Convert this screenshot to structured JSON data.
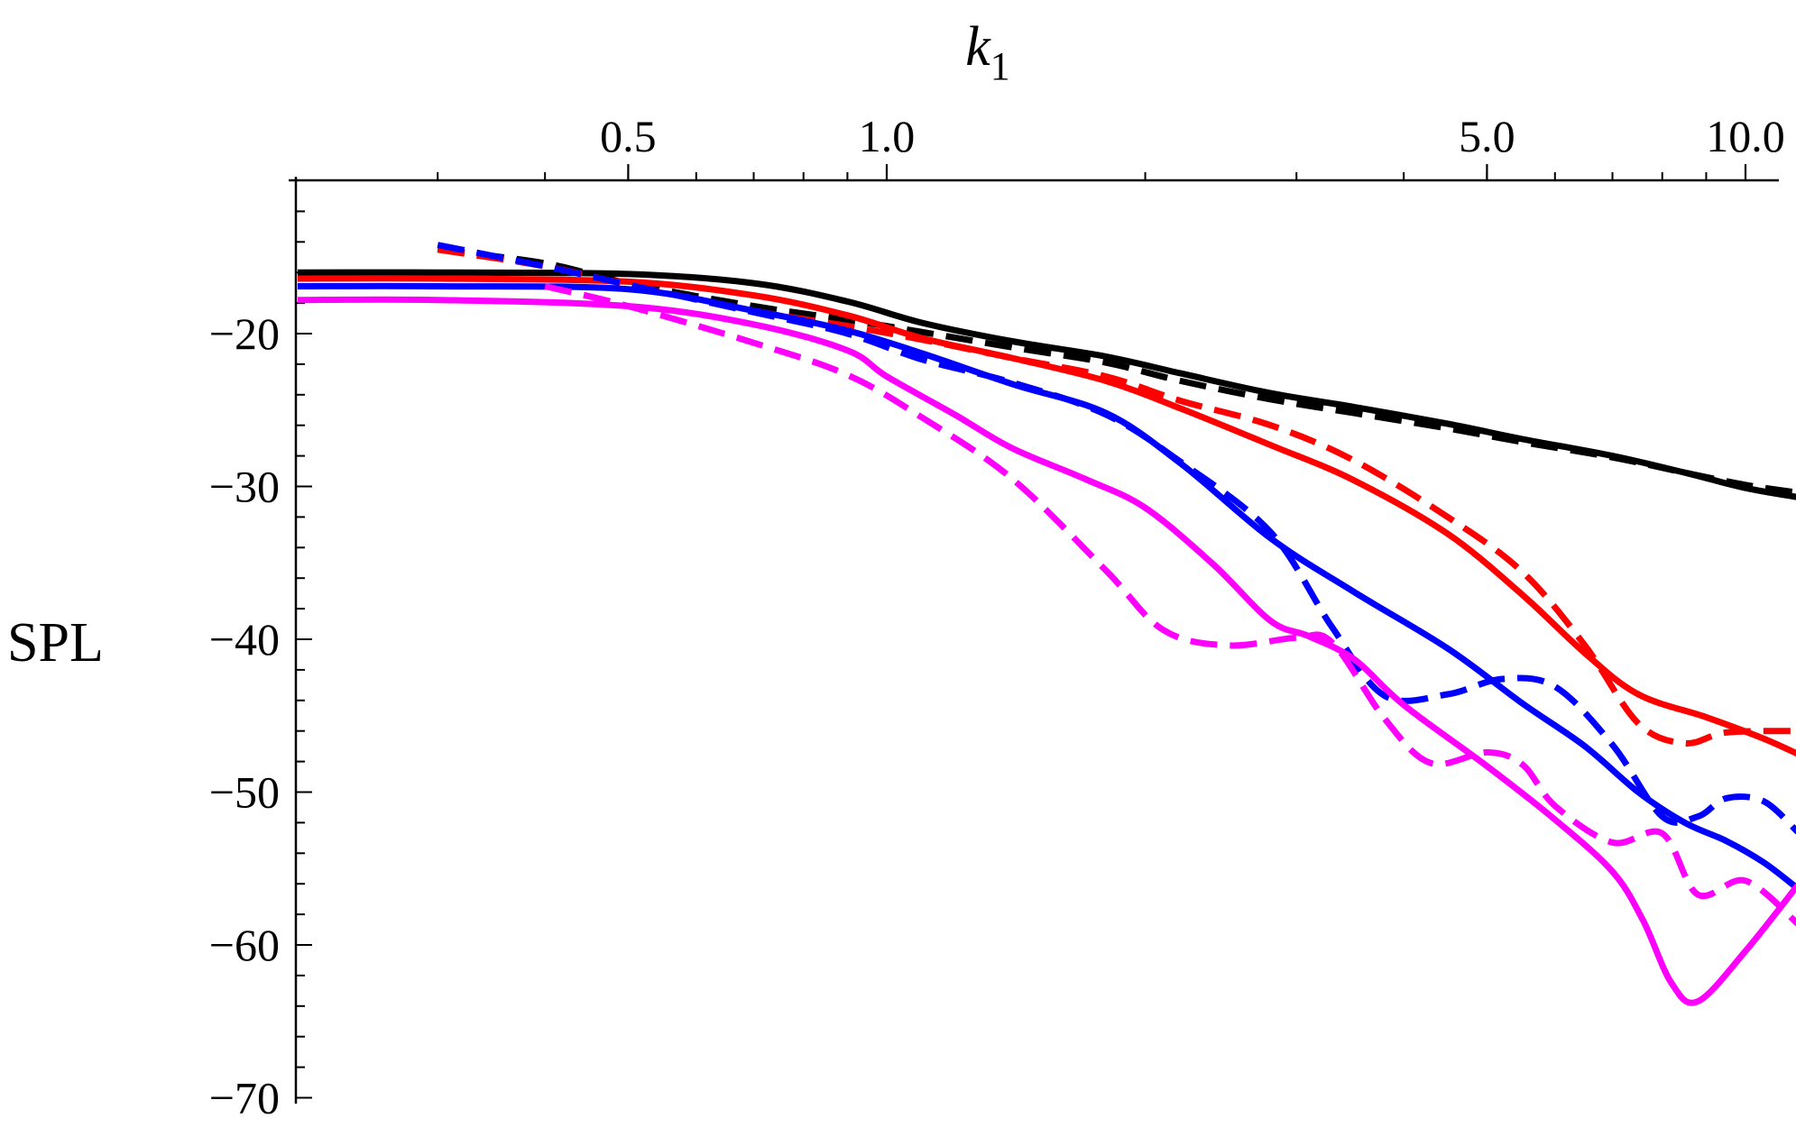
{
  "chart_data": {
    "type": "line",
    "title": "",
    "xlabel": "k",
    "xlabel_subscript": "1",
    "ylabel": "SPL",
    "x_scale": "log",
    "x_axis_position": "top",
    "xlim": [
      0.2,
      11.5
    ],
    "ylim": [
      -70,
      -12
    ],
    "xticks": [
      {
        "value": 0.5,
        "label": "0.5"
      },
      {
        "value": 1.0,
        "label": "1.0"
      },
      {
        "value": 5.0,
        "label": "5.0"
      },
      {
        "value": 10.0,
        "label": "10.0"
      }
    ],
    "yticks": [
      {
        "value": -20,
        "label": "−20"
      },
      {
        "value": -30,
        "label": "−30"
      },
      {
        "value": -40,
        "label": "−40"
      },
      {
        "value": -50,
        "label": "−50"
      },
      {
        "value": -60,
        "label": "−60"
      },
      {
        "value": -70,
        "label": "−70"
      }
    ],
    "grid": false,
    "legend": "none",
    "series": [
      {
        "color": "#000000",
        "style": "solid",
        "x": [
          0.2,
          0.3,
          0.5,
          0.7,
          0.9,
          1.1,
          1.4,
          1.8,
          2.2,
          2.8,
          3.5,
          4.5,
          5.5,
          7.0,
          8.5,
          10.0,
          11.5
        ],
        "y": [
          -16.0,
          -16.0,
          -16.1,
          -16.7,
          -17.9,
          -19.3,
          -20.5,
          -21.5,
          -22.6,
          -23.9,
          -24.8,
          -25.9,
          -26.9,
          -28.0,
          -29.1,
          -30.1,
          -30.7
        ]
      },
      {
        "color": "#000000",
        "style": "dashed",
        "x": [
          0.3,
          0.4,
          0.5,
          0.7,
          0.9,
          1.1,
          1.4,
          1.8,
          2.2,
          2.8,
          3.5,
          4.5,
          5.5,
          7.0,
          8.5,
          10.0,
          11.5
        ],
        "y": [
          -14.5,
          -15.4,
          -16.7,
          -18.2,
          -19.1,
          -19.9,
          -20.9,
          -21.9,
          -23.1,
          -24.3,
          -25.2,
          -26.2,
          -27.1,
          -28.1,
          -29.1,
          -29.9,
          -30.4
        ]
      },
      {
        "color": "#ff0000",
        "style": "solid",
        "x": [
          0.2,
          0.3,
          0.5,
          0.7,
          0.9,
          1.1,
          1.4,
          1.8,
          2.2,
          2.8,
          3.5,
          4.5,
          5.5,
          6.5,
          7.5,
          9.0,
          10.5,
          11.5
        ],
        "y": [
          -16.4,
          -16.4,
          -16.6,
          -17.5,
          -18.8,
          -20.3,
          -21.6,
          -23.1,
          -24.9,
          -27.3,
          -29.6,
          -33.1,
          -37.1,
          -40.9,
          -43.6,
          -45.1,
          -46.5,
          -47.5
        ]
      },
      {
        "color": "#ff0000",
        "style": "dashed",
        "x": [
          0.3,
          0.4,
          0.5,
          0.7,
          0.9,
          1.1,
          1.4,
          1.8,
          2.2,
          2.8,
          3.5,
          4.5,
          5.5,
          6.5,
          7.5,
          8.5,
          9.5,
          11.5
        ],
        "y": [
          -14.5,
          -15.6,
          -16.8,
          -18.5,
          -19.5,
          -20.4,
          -21.6,
          -22.8,
          -24.4,
          -26.0,
          -28.3,
          -32.0,
          -35.6,
          -40.4,
          -45.5,
          -46.8,
          -46.1,
          -46.0
        ]
      },
      {
        "color": "#0000ff",
        "style": "solid",
        "x": [
          0.2,
          0.3,
          0.5,
          0.7,
          0.9,
          1.1,
          1.4,
          1.8,
          2.2,
          2.8,
          3.5,
          4.5,
          5.5,
          6.5,
          7.5,
          8.5,
          9.5,
          10.5,
          11.5
        ],
        "y": [
          -16.9,
          -16.9,
          -17.1,
          -18.5,
          -19.8,
          -21.3,
          -23.3,
          -25.2,
          -28.5,
          -33.4,
          -36.9,
          -40.6,
          -44.2,
          -47.0,
          -50.0,
          -52.0,
          -53.2,
          -54.6,
          -56.3
        ]
      },
      {
        "color": "#0000ff",
        "style": "dashed",
        "x": [
          0.3,
          0.4,
          0.5,
          0.7,
          0.9,
          1.1,
          1.4,
          1.8,
          2.2,
          2.8,
          3.3,
          3.8,
          4.5,
          5.2,
          6.0,
          7.0,
          8.0,
          8.8,
          9.5,
          10.5,
          11.5
        ],
        "y": [
          -14.2,
          -15.6,
          -16.8,
          -18.6,
          -20.0,
          -21.7,
          -23.2,
          -25.3,
          -28.4,
          -33.0,
          -39.2,
          -43.7,
          -43.6,
          -42.6,
          -43.1,
          -46.9,
          -51.6,
          -51.6,
          -50.4,
          -50.6,
          -52.6
        ]
      },
      {
        "color": "#ff00ff",
        "style": "solid",
        "x": [
          0.2,
          0.3,
          0.5,
          0.7,
          0.9,
          1.0,
          1.2,
          1.4,
          1.7,
          2.0,
          2.4,
          2.8,
          3.1,
          3.5,
          4.0,
          5.0,
          6.0,
          7.0,
          7.6,
          8.2,
          8.8,
          10.0,
          11.5
        ],
        "y": [
          -17.8,
          -17.8,
          -18.2,
          -19.4,
          -21.1,
          -22.8,
          -25.3,
          -27.5,
          -29.5,
          -31.4,
          -35.1,
          -38.8,
          -39.8,
          -41.3,
          -44.3,
          -48.3,
          -51.8,
          -55.2,
          -58.4,
          -62.5,
          -63.7,
          -60.4,
          -56.1
        ]
      },
      {
        "color": "#ff00ff",
        "style": "dashed",
        "x": [
          0.4,
          0.5,
          0.7,
          0.9,
          1.1,
          1.4,
          1.8,
          2.1,
          2.5,
          3.0,
          3.3,
          3.8,
          4.3,
          5.0,
          5.5,
          6.0,
          7.0,
          8.0,
          8.8,
          10.0,
          11.5
        ],
        "y": [
          -16.9,
          -18.2,
          -20.6,
          -22.7,
          -25.5,
          -29.5,
          -35.5,
          -39.4,
          -40.4,
          -39.9,
          -40.2,
          -45.2,
          -48.1,
          -47.4,
          -48.2,
          -50.9,
          -53.3,
          -52.7,
          -56.7,
          -55.8,
          -58.6
        ]
      }
    ]
  }
}
